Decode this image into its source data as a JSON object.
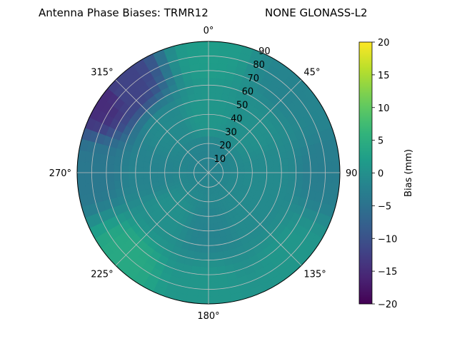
{
  "title_left": "Antenna Phase Biases: TRMR12",
  "title_right": "NONE GLONASS-L2",
  "chart_data": {
    "type": "heatmap",
    "projection": "polar",
    "title": "Antenna Phase Biases: TRMR12",
    "subtitle": "NONE GLONASS-L2",
    "azimuth_ticks": [
      {
        "deg": 0,
        "label": "0°"
      },
      {
        "deg": 45,
        "label": "45°"
      },
      {
        "deg": 90,
        "label": "90"
      },
      {
        "deg": 135,
        "label": "135°"
      },
      {
        "deg": 180,
        "label": "180°"
      },
      {
        "deg": 225,
        "label": "225°"
      },
      {
        "deg": 270,
        "label": "270°"
      },
      {
        "deg": 315,
        "label": "315°"
      }
    ],
    "radial_ticks": [
      10,
      20,
      30,
      40,
      50,
      60,
      70,
      80,
      90
    ],
    "radial_range": [
      0,
      90
    ],
    "colorbar": {
      "label": "Bias (mm)",
      "range": [
        -20,
        20
      ],
      "ticks": [
        -20,
        -15,
        -10,
        -5,
        0,
        5,
        10,
        15,
        20
      ],
      "colormap": "viridis"
    },
    "field_samples": [
      {
        "az": 0,
        "zen": 10,
        "bias": -2
      },
      {
        "az": 0,
        "zen": 40,
        "bias": 1
      },
      {
        "az": 0,
        "zen": 80,
        "bias": 2
      },
      {
        "az": 45,
        "zen": 40,
        "bias": 0
      },
      {
        "az": 45,
        "zen": 80,
        "bias": -2
      },
      {
        "az": 90,
        "zen": 40,
        "bias": -1
      },
      {
        "az": 90,
        "zen": 80,
        "bias": -3
      },
      {
        "az": 135,
        "zen": 40,
        "bias": -1
      },
      {
        "az": 135,
        "zen": 80,
        "bias": 1
      },
      {
        "az": 180,
        "zen": 40,
        "bias": -2
      },
      {
        "az": 180,
        "zen": 80,
        "bias": 1
      },
      {
        "az": 225,
        "zen": 40,
        "bias": 0
      },
      {
        "az": 225,
        "zen": 80,
        "bias": 4
      },
      {
        "az": 270,
        "zen": 40,
        "bias": -2
      },
      {
        "az": 270,
        "zen": 80,
        "bias": -4
      },
      {
        "az": 315,
        "zen": 40,
        "bias": -1
      },
      {
        "az": 315,
        "zen": 80,
        "bias": -12
      },
      {
        "az": 305,
        "zen": 88,
        "bias": -15
      }
    ],
    "grid": true
  },
  "colors": {
    "gridline": "#bfbfbf",
    "frame": "#000000"
  }
}
